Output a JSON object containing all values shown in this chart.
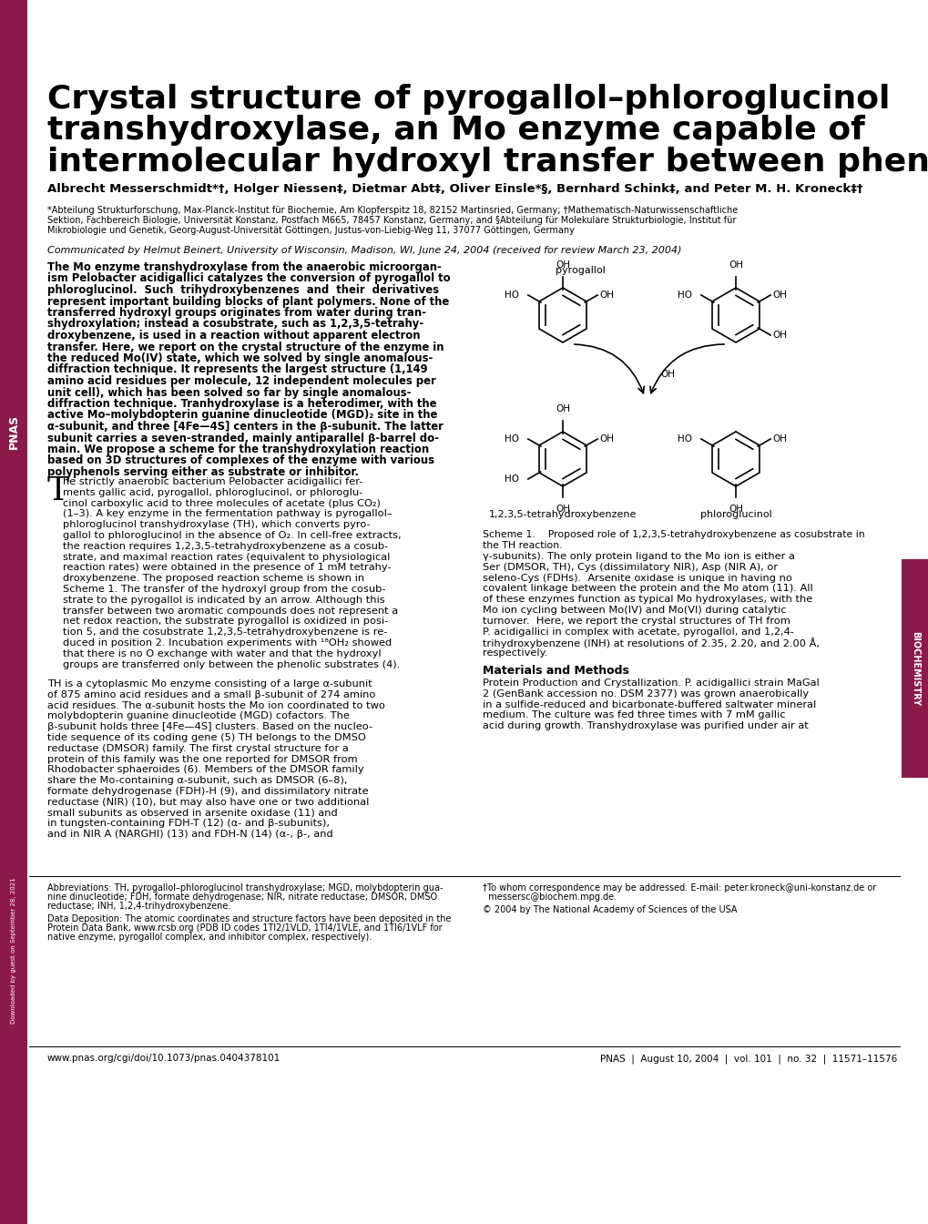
{
  "title_line1": "Crystal structure of pyrogallol–phloroglucinol",
  "title_line2": "transhydroxylase, an Mo enzyme capable of",
  "title_line3": "intermolecular hydroxyl transfer between phenols",
  "authors": "Albrecht Messerschmidt*†, Holger Niessen‡, Dietmar Abt‡, Oliver Einsle*§, Bernhard Schink‡, and Peter M. H. Kroneck‡†",
  "affil1": "*Abteilung Strukturforschung, Max-Planck-Institut für Biochemie, Am Klopferspitz 18, 82152 Martinsried, Germany; †Mathematisch-Naturwissenschaftliche",
  "affil2": "Sektion, Fachbereich Biologie, Universität Konstanz, Postfach M665, 78457 Konstanz, Germany; and §Abteilung für Molekulare Strukturbiologie, Institut für",
  "affil3": "Mikrobiologie und Genetik, Georg-August-Universität Göttingen, Justus-von-Liebig-Weg 11, 37077 Göttingen, Germany",
  "communicated": "Communicated by Helmut Beinert, University of Wisconsin, Madison, WI, June 24, 2004 (received for review March 23, 2004)",
  "abstract_lines": [
    "The Mo enzyme transhydroxylase from the anaerobic microorgan-",
    "ism Pelobacter acidigallici catalyzes the conversion of pyrogallol to",
    "phloroglucinol.  Such  trihydroxybenzenes  and  their  derivatives",
    "represent important building blocks of plant polymers. None of the",
    "transferred hydroxyl groups originates from water during tran-",
    "shydroxylation; instead a cosubstrate, such as 1,2,3,5-tetrahy-",
    "droxybenzene, is used in a reaction without apparent electron",
    "transfer. Here, we report on the crystal structure of the enzyme in",
    "the reduced Mo(IV) state, which we solved by single anomalous-",
    "diffraction technique. It represents the largest structure (1,149",
    "amino acid residues per molecule, 12 independent molecules per",
    "unit cell), which has been solved so far by single anomalous-",
    "diffraction technique. Tranhydroxylase is a heterodimer, with the",
    "active Mo–molybdopterin guanine dinucleotide (MGD)₂ site in the",
    "α-subunit, and three [4Fe—4S] centers in the β-subunit. The latter",
    "subunit carries a seven-stranded, mainly antiparallel β-barrel do-",
    "main. We propose a scheme for the transhydroxylation reaction",
    "based on 3D structures of complexes of the enzyme with various",
    "polyphenols serving either as substrate or inhibitor."
  ],
  "body1_lines": [
    "he strictly anaerobic bacterium Pelobacter acidigallici fer-",
    "ments gallic acid, pyrogallol, phloroglucinol, or phloroglu-",
    "cinol carboxylic acid to three molecules of acetate (plus CO₂)",
    "(1–3). A key enzyme in the fermentation pathway is pyrogallol–",
    "phloroglucinol transhydroxylase (TH), which converts pyro-",
    "gallol to phloroglucinol in the absence of O₂. In cell-free extracts,",
    "the reaction requires 1,2,3,5-tetrahydroxybenzene as a cosub-",
    "strate, and maximal reaction rates (equivalent to physiological",
    "reaction rates) were obtained in the presence of 1 mM tetrahy-",
    "droxybenzene. The proposed reaction scheme is shown in",
    "Scheme 1. The transfer of the hydroxyl group from the cosub-",
    "strate to the pyrogallol is indicated by an arrow. Although this",
    "transfer between two aromatic compounds does not represent a",
    "net redox reaction, the substrate pyrogallol is oxidized in posi-",
    "tion 5, and the cosubstrate 1,2,3,5-tetrahydroxybenzene is re-",
    "duced in position 2. Incubation experiments with ¹⁸OH₂ showed",
    "that there is no O exchange with water and that the hydroxyl",
    "groups are transferred only between the phenolic substrates (4)."
  ],
  "body2_lines": [
    "TH is a cytoplasmic Mo enzyme consisting of a large α-subunit",
    "of 875 amino acid residues and a small β-subunit of 274 amino",
    "acid residues. The α-subunit hosts the Mo ion coordinated to two",
    "molybdopterin guanine dinucleotide (MGD) cofactors. The",
    "β-subunit holds three [4Fe—4S] clusters. Based on the nucleo-",
    "tide sequence of its coding gene (5) TH belongs to the DMSO",
    "reductase (DMSOR) family. The first crystal structure for a",
    "protein of this family was the one reported for DMSOR from",
    "Rhodobacter sphaeroides (6). Members of the DMSOR family",
    "share the Mo-containing α-subunit, such as DMSOR (6–8),",
    "formate dehydrogenase (FDH)-H (9), and dissimilatory nitrate",
    "reductase (NIR) (10), but may also have one or two additional",
    "small subunits as observed in arsenite oxidase (11) and",
    "in tungsten-containing FDH-T (12) (α- and β-subunits),",
    "and in NIR A (NARGHI) (13) and FDH-N (14) (α-, β-, and"
  ],
  "rcol_lines": [
    "γ-subunits). The only protein ligand to the Mo ion is either a",
    "Ser (DMSOR, TH), Cys (dissimilatory NIR), Asp (NIR A), or",
    "seleno-Cys (FDHs).  Arsenite oxidase is unique in having no",
    "covalent linkage between the protein and the Mo atom (11). All",
    "of these enzymes function as typical Mo hydroxylases, with the",
    "Mo ion cycling between Mo(IV) and Mo(VI) during catalytic",
    "turnover.  Here, we report the crystal structures of TH from",
    "P. acidigallici in complex with acetate, pyrogallol, and 1,2,4-",
    "trihydroxybenzene (INH) at resolutions of 2.35, 2.20, and 2.00 Å,",
    "respectively."
  ],
  "mat_header": "Materials and Methods",
  "mat_lines": [
    "Protein Production and Crystallization. P. acidigallici strain MaGal",
    "2 (GenBank accession no. DSM 2377) was grown anaerobically",
    "in a sulfide-reduced and bicarbonate-buffered saltwater mineral",
    "medium. The culture was fed three times with 7 mM gallic",
    "acid during growth. Transhydroxylase was purified under air at"
  ],
  "fn1_lines": [
    "Abbreviations: TH, pyrogallol–phloroglucinol transhydroxylase; MGD, molybdopterin gua-",
    "nine dinucleotide; FDH, formate dehydrogenase; NIR, nitrate reductase; DMSOR, DMSO",
    "reductase; INH, 1,2,4-trihydroxybenzene."
  ],
  "fn2_lines": [
    "Data Deposition: The atomic coordinates and structure factors have been deposited in the",
    "Protein Data Bank, www.rcsb.org (PDB ID codes 1TI2/1VLD, 1TI4/1VLE, and 1TI6/1VLF for",
    "native enzyme, pyrogallol complex, and inhibitor complex, respectively)."
  ],
  "fn3_lines": [
    "†To whom correspondence may be addressed. E-mail: peter.kroneck@uni-konstanz.de or",
    "  messersc@biochem.mpg.de."
  ],
  "fn4": "© 2004 by The National Academy of Sciences of the USA",
  "footer_url": "www.pnas.org/cgi/doi/10.1073/pnas.0404378101",
  "footer_right": "PNAS  |  August 10, 2004  |  vol. 101  |  no. 32  |  11571–11576",
  "scheme_caption1": "Scheme 1.    Proposed role of 1,2,3,5-tetrahydroxybenzene as cosubstrate in",
  "scheme_caption2": "the TH reaction.",
  "sidebar_color": "#8B1A4A",
  "bg_color": "#FFFFFF"
}
